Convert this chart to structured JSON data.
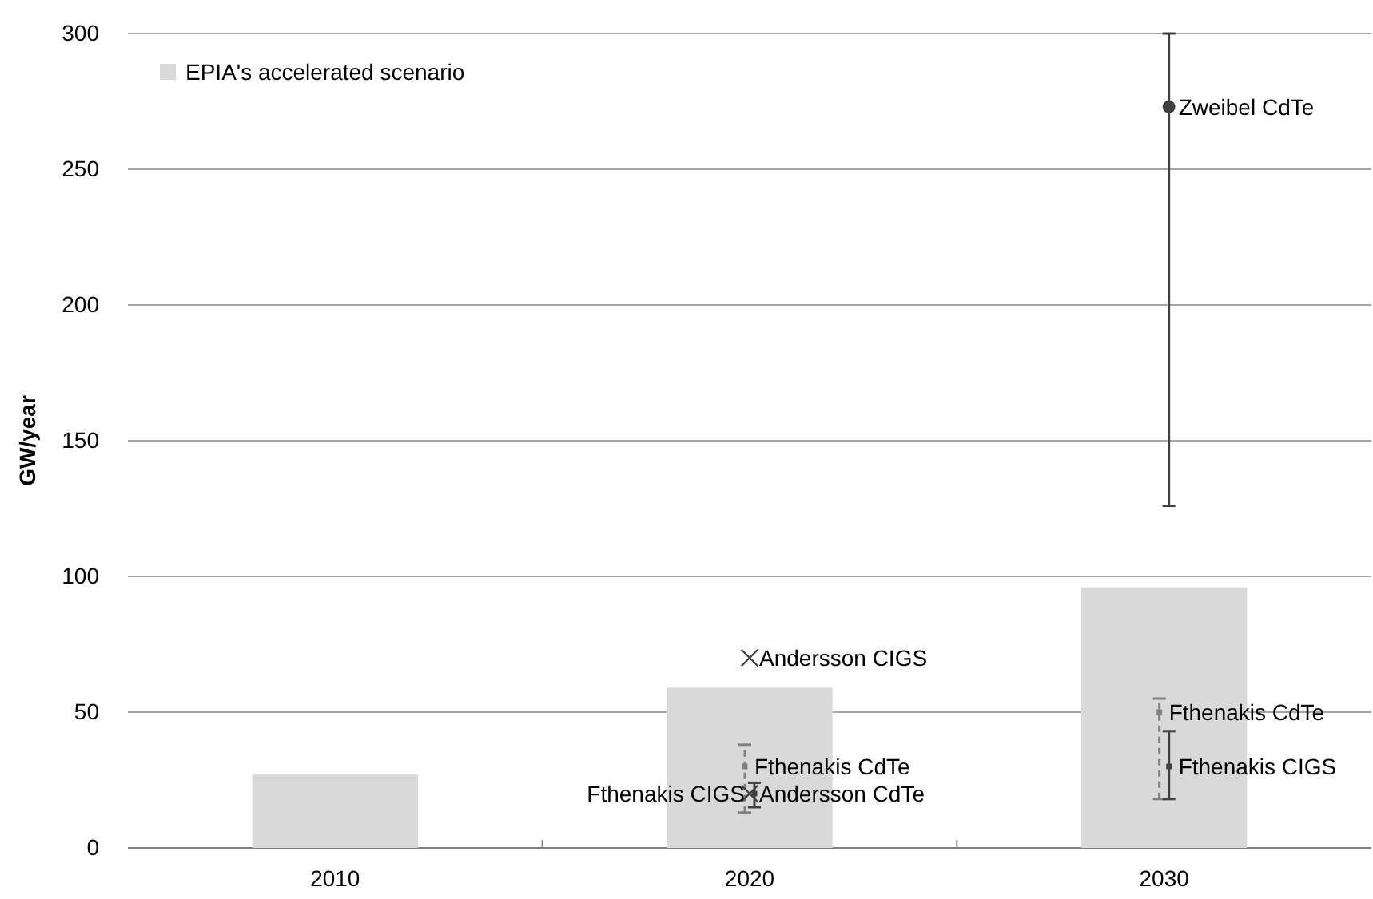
{
  "chart_data": {
    "type": "bar",
    "ylabel": "GW/year",
    "categories": [
      "2010",
      "2020",
      "2030"
    ],
    "ylim": [
      0,
      300
    ],
    "yticks": [
      0,
      50,
      100,
      150,
      200,
      250,
      300
    ],
    "grid": "y",
    "legend": "top left",
    "series": [
      {
        "name": "EPIA's accelerated scenario",
        "color": "#d9d9d9",
        "values": [
          27,
          59,
          96
        ]
      },
      {
        "name": "Andersson CIGS",
        "type": "scatter",
        "marker": "cross",
        "color": "#404040",
        "values": [
          null,
          70,
          null
        ]
      },
      {
        "name": "Fthenakis CdTe",
        "type": "scatter",
        "marker": "square",
        "line_style": "dashed",
        "color": "#808080",
        "values": [
          null,
          30,
          50
        ],
        "errors": [
          null,
          [
            13,
            38
          ],
          [
            18,
            55
          ]
        ]
      },
      {
        "name": "Andersson CdTe",
        "type": "scatter",
        "marker": "cross",
        "color": "#404040",
        "values": [
          null,
          20,
          null
        ]
      },
      {
        "name": "Fthenakis CIGS",
        "type": "scatter",
        "marker": "square",
        "color": "#404040",
        "values": [
          null,
          20,
          30
        ],
        "errors": [
          null,
          [
            15,
            24
          ],
          [
            18,
            43
          ]
        ]
      },
      {
        "name": "Zweibel CdTe",
        "type": "scatter",
        "marker": "circle",
        "color": "#404040",
        "values": [
          null,
          null,
          273
        ],
        "errors": [
          null,
          null,
          [
            126,
            300
          ]
        ]
      }
    ]
  }
}
